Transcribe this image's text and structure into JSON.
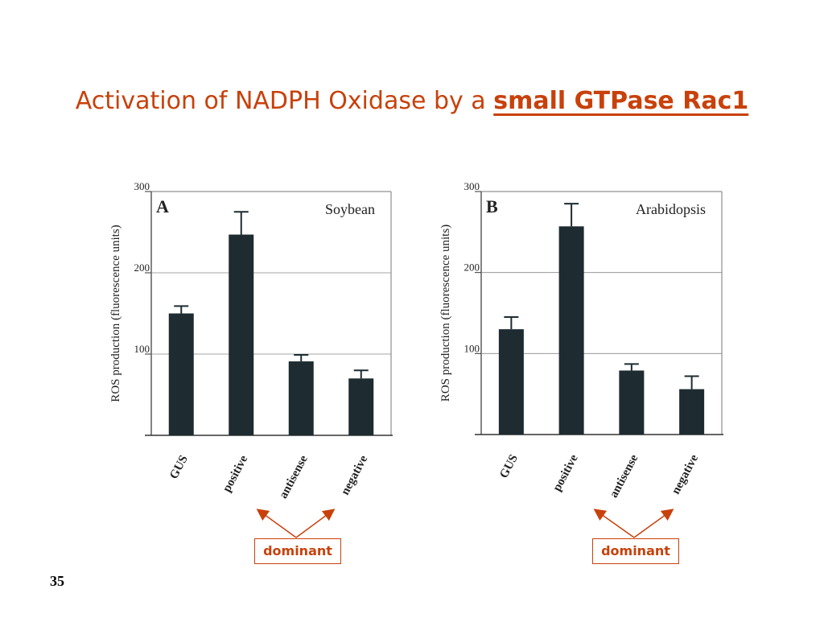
{
  "slide": {
    "title_plain": "Activation of NADPH Oxidase by a",
    "title_emphasis": "small GTPase Rac1",
    "slide_number": "35",
    "accent_color": "#c8410b"
  },
  "annotations": [
    {
      "label": "dominant"
    },
    {
      "label": "dominant"
    }
  ],
  "chart_data": [
    {
      "type": "bar",
      "panel_letter": "A",
      "inset_label": "Soybean",
      "ylabel": "ROS production (fluorescence units)",
      "categories": [
        "GUS",
        "positive",
        "antisense",
        "negative"
      ],
      "values": [
        150,
        247,
        91,
        70
      ],
      "errors": [
        9,
        28,
        8,
        10
      ],
      "yticks": [
        100,
        200,
        300
      ],
      "ylim": [
        0,
        300
      ],
      "grid": true,
      "bar_color": "#1e2b30"
    },
    {
      "type": "bar",
      "panel_letter": "B",
      "inset_label": "Arabidopsis",
      "ylabel": "ROS production (fluorescence units)",
      "categories": [
        "GUS",
        "positive",
        "antisense",
        "negative"
      ],
      "values": [
        130,
        257,
        79,
        56
      ],
      "errors": [
        15,
        28,
        8,
        16
      ],
      "yticks": [
        100,
        200,
        300
      ],
      "ylim": [
        0,
        300
      ],
      "grid": true,
      "bar_color": "#1e2b30"
    }
  ]
}
